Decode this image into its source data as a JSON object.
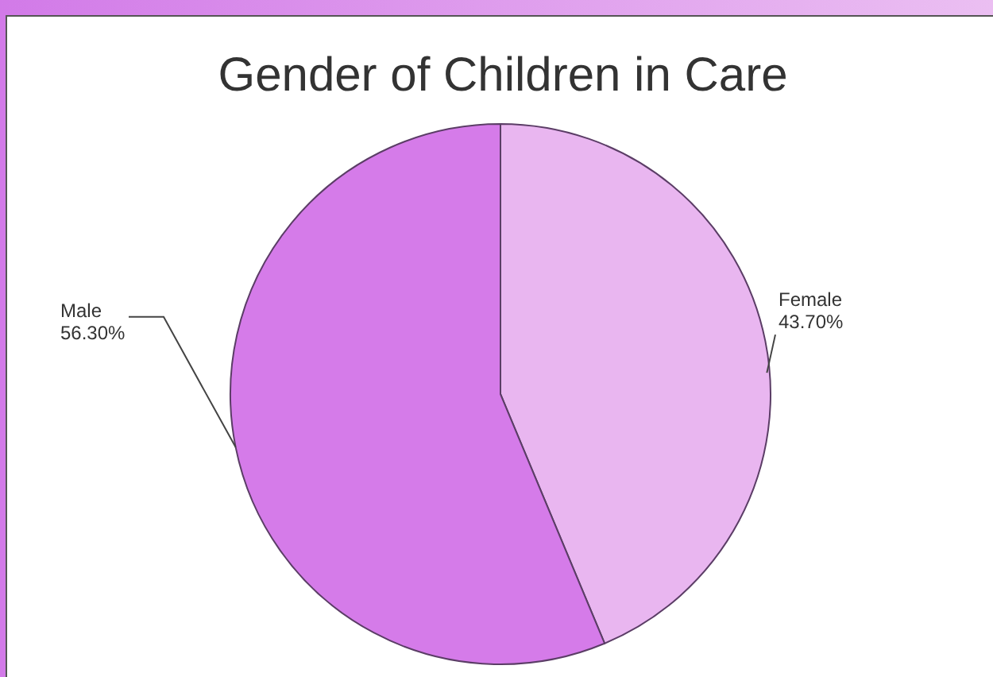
{
  "chart_data": {
    "type": "pie",
    "title": "Gender of Children in Care",
    "categories": [
      "Female",
      "Male"
    ],
    "values": [
      43.7,
      56.3
    ],
    "colors": [
      "#e9b6f0",
      "#d57be9"
    ],
    "value_labels": [
      "43.70%",
      "56.30%"
    ]
  }
}
